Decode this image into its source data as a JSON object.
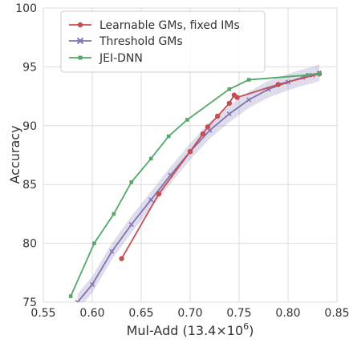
{
  "chart_data": {
    "type": "line",
    "xlabel": "Mul-Add (13.4×10",
    "xlabel_sup": "6",
    "xlabel_end": ")",
    "ylabel": "Accuracy",
    "xlim": [
      0.55,
      0.85
    ],
    "ylim": [
      75,
      100
    ],
    "xticks": [
      "0.55",
      "0.60",
      "0.65",
      "0.70",
      "0.75",
      "0.80",
      "0.85"
    ],
    "yticks": [
      "75",
      "80",
      "85",
      "90",
      "95",
      "100"
    ],
    "grid": true,
    "legend_position": "top-left",
    "series": [
      {
        "name": "Learnable GMs, fixed IMs",
        "color": "#c44e52",
        "marker": "circle",
        "x": [
          0.63,
          0.668,
          0.7,
          0.713,
          0.718,
          0.728,
          0.74,
          0.745,
          0.748,
          0.79,
          0.832
        ],
        "y": [
          78.7,
          84.2,
          87.8,
          89.3,
          89.9,
          90.8,
          91.9,
          92.6,
          92.4,
          93.5,
          94.4
        ]
      },
      {
        "name": "Threshold GMs",
        "color": "#8172b2",
        "marker": "x",
        "x": [
          0.585,
          0.6,
          0.62,
          0.64,
          0.66,
          0.68,
          0.7,
          0.72,
          0.74,
          0.76,
          0.78,
          0.8,
          0.815,
          0.825,
          0.832
        ],
        "y": [
          75.0,
          76.5,
          79.3,
          81.6,
          83.7,
          85.8,
          87.8,
          89.6,
          91.0,
          92.2,
          93.1,
          93.7,
          94.1,
          94.3,
          94.5
        ]
      },
      {
        "name": "JEI-DNN",
        "color": "#55a868",
        "marker": "square",
        "x": [
          0.578,
          0.602,
          0.622,
          0.64,
          0.66,
          0.678,
          0.697,
          0.74,
          0.76,
          0.82,
          0.832
        ],
        "y": [
          75.5,
          80.0,
          82.5,
          85.2,
          87.2,
          89.1,
          90.5,
          93.1,
          93.9,
          94.3,
          94.4
        ]
      }
    ]
  }
}
